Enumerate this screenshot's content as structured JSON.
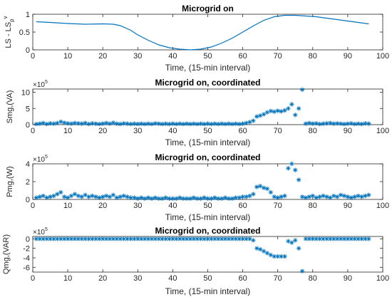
{
  "colors": {
    "series": "#0072BD",
    "axis": "#262626",
    "background": "#ffffff"
  },
  "chart_data": [
    {
      "type": "line",
      "title": "Microgrid on",
      "xlabel": "Time, (15-min interval)",
      "ylabel_main": "LS - LS",
      "ylabel_sub": "p",
      "ylabel_sup": "v",
      "exponent": "",
      "xlim": [
        0,
        100
      ],
      "ylim": [
        0,
        1
      ],
      "xticks": [
        0,
        10,
        20,
        30,
        40,
        50,
        60,
        70,
        80,
        90,
        100
      ],
      "yticks": [
        0,
        0.5,
        1
      ],
      "ytick_labels": [
        "0",
        "0.5",
        "1"
      ],
      "grid": false,
      "series": [
        {
          "x": [
            1,
            5,
            10,
            15,
            20,
            23,
            25,
            28,
            30,
            33,
            36,
            39,
            42,
            45,
            48,
            51,
            54,
            57,
            60,
            63,
            66,
            69,
            72,
            75,
            78,
            81,
            84,
            87,
            90,
            93,
            96
          ],
          "values": [
            0.79,
            0.77,
            0.74,
            0.72,
            0.73,
            0.72,
            0.68,
            0.55,
            0.42,
            0.27,
            0.14,
            0.06,
            0.02,
            0.0,
            0.02,
            0.08,
            0.19,
            0.33,
            0.5,
            0.67,
            0.83,
            0.93,
            0.97,
            0.97,
            0.95,
            0.93,
            0.89,
            0.85,
            0.81,
            0.77,
            0.73
          ]
        }
      ]
    },
    {
      "type": "scatter",
      "title": "Microgrid on, coordinated",
      "xlabel": "Time, (15-min interval)",
      "ylabel_main": "Smg,(VA)",
      "ylabel_sub": "",
      "ylabel_sup": "",
      "exponent": "5",
      "xlim": [
        0,
        100
      ],
      "ylim": [
        0,
        11
      ],
      "xticks": [
        0,
        10,
        20,
        30,
        40,
        50,
        60,
        70,
        80,
        90,
        100
      ],
      "yticks": [
        0,
        5,
        10
      ],
      "ytick_labels": [
        "0",
        "5",
        "10"
      ],
      "grid": false,
      "series": [
        {
          "x": [
            1,
            2,
            3,
            4,
            5,
            6,
            7,
            8,
            9,
            10,
            11,
            12,
            13,
            14,
            15,
            16,
            17,
            18,
            19,
            20,
            21,
            22,
            23,
            24,
            25,
            26,
            27,
            28,
            29,
            30,
            31,
            32,
            33,
            34,
            35,
            36,
            37,
            38,
            39,
            40,
            41,
            42,
            43,
            44,
            45,
            46,
            47,
            48,
            49,
            50,
            51,
            52,
            53,
            54,
            55,
            56,
            57,
            58,
            59,
            60,
            61,
            62,
            63,
            64,
            65,
            66,
            67,
            68,
            69,
            70,
            71,
            72,
            73,
            74,
            75,
            76,
            77,
            78,
            79,
            80,
            81,
            82,
            83,
            84,
            85,
            86,
            87,
            88,
            89,
            90,
            91,
            92,
            93,
            94,
            95,
            96
          ],
          "values": [
            0.2,
            0.3,
            0.5,
            0.2,
            0.4,
            0.3,
            0.5,
            0.9,
            0.6,
            0.4,
            0.3,
            0.5,
            0.4,
            0.3,
            0.5,
            0.2,
            0.4,
            0.3,
            0.2,
            0.3,
            0.5,
            0.3,
            0.6,
            0.3,
            0.2,
            0.4,
            0.3,
            0.2,
            0.3,
            0.2,
            0.3,
            0.2,
            0.3,
            0.2,
            0.4,
            0.3,
            0.2,
            0.3,
            0.2,
            0.3,
            0.2,
            0.3,
            0.2,
            0.3,
            0.2,
            0.3,
            0.2,
            0.3,
            0.2,
            0.3,
            0.2,
            0.3,
            0.2,
            0.3,
            0.2,
            0.3,
            0.2,
            0.3,
            0.2,
            0.3,
            0.5,
            0.8,
            1.2,
            2.5,
            2.8,
            3.2,
            3.8,
            4.2,
            4.0,
            4.3,
            4.1,
            4.4,
            5.0,
            6.3,
            3.0,
            5.0,
            10.8,
            0.3,
            0.5,
            0.3,
            0.4,
            0.2,
            0.3,
            0.4,
            0.5,
            0.3,
            0.4,
            0.3,
            0.2,
            0.3,
            0.4,
            0.2,
            0.3,
            0.2,
            0.4,
            0.3
          ]
        }
      ]
    },
    {
      "type": "scatter",
      "title": "Microgrid on, coordinated",
      "xlabel": "Time, (15-min interval)",
      "ylabel_main": "Pmg,(W)",
      "ylabel_sub": "",
      "ylabel_sup": "",
      "exponent": "5",
      "xlim": [
        0,
        100
      ],
      "ylim": [
        0,
        4
      ],
      "xticks": [
        0,
        10,
        20,
        30,
        40,
        50,
        60,
        70,
        80,
        90,
        100
      ],
      "yticks": [
        0,
        2,
        4
      ],
      "ytick_labels": [
        "0",
        "2",
        "4"
      ],
      "grid": false,
      "series": [
        {
          "x": [
            1,
            2,
            3,
            4,
            5,
            6,
            7,
            8,
            9,
            10,
            11,
            12,
            13,
            14,
            15,
            16,
            17,
            18,
            19,
            20,
            21,
            22,
            23,
            24,
            25,
            26,
            27,
            28,
            29,
            30,
            31,
            32,
            33,
            34,
            35,
            36,
            37,
            38,
            39,
            40,
            41,
            42,
            43,
            44,
            45,
            46,
            47,
            48,
            49,
            50,
            51,
            52,
            53,
            54,
            55,
            56,
            57,
            58,
            59,
            60,
            61,
            62,
            63,
            64,
            65,
            66,
            67,
            68,
            69,
            70,
            71,
            72,
            73,
            74,
            75,
            76,
            77,
            78,
            79,
            80,
            81,
            82,
            83,
            84,
            85,
            86,
            87,
            88,
            89,
            90,
            91,
            92,
            93,
            94,
            95,
            96
          ],
          "values": [
            0.2,
            0.3,
            0.4,
            0.2,
            0.3,
            0.4,
            0.6,
            0.8,
            0.3,
            0.2,
            0.4,
            0.6,
            0.4,
            0.3,
            0.5,
            0.3,
            0.4,
            0.3,
            0.2,
            0.3,
            0.4,
            0.3,
            0.5,
            0.2,
            0.3,
            0.4,
            0.3,
            0.2,
            0.2,
            0.1,
            0.2,
            0.1,
            0.2,
            0.1,
            0.2,
            0.1,
            0.1,
            0.2,
            0.1,
            0.1,
            0.1,
            0.2,
            0.1,
            0.1,
            0.1,
            0.2,
            0.1,
            0.1,
            0.2,
            0.1,
            0.1,
            0.2,
            0.1,
            0.1,
            0.2,
            0.1,
            0.1,
            0.2,
            0.2,
            0.3,
            0.3,
            0.4,
            0.6,
            1.4,
            1.5,
            1.3,
            1.2,
            0.8,
            0.3,
            0.2,
            0.3,
            0.4,
            3.5,
            4.0,
            3.3,
            2.2,
            0.3,
            0.2,
            0.3,
            0.4,
            0.2,
            0.3,
            0.4,
            0.3,
            0.2,
            0.4,
            0.3,
            0.5,
            0.4,
            0.3,
            0.2,
            0.3,
            0.4,
            0.3,
            0.4,
            0.5
          ]
        }
      ]
    },
    {
      "type": "scatter",
      "title": "Microgrid on, coordinated",
      "xlabel": "Time, (15-min interval)",
      "ylabel_main": "Qmg,(VAR)",
      "ylabel_sub": "",
      "ylabel_sup": "",
      "exponent": "5",
      "xlim": [
        0,
        100
      ],
      "ylim": [
        -7,
        0.5
      ],
      "xticks": [
        0,
        10,
        20,
        30,
        40,
        50,
        60,
        70,
        80,
        90,
        100
      ],
      "yticks": [
        -6,
        -4,
        -2,
        0
      ],
      "ytick_labels": [
        "-6",
        "-4",
        "-2",
        "0"
      ],
      "grid": false,
      "series": [
        {
          "x": [
            1,
            2,
            3,
            4,
            5,
            6,
            7,
            8,
            9,
            10,
            11,
            12,
            13,
            14,
            15,
            16,
            17,
            18,
            19,
            20,
            21,
            22,
            23,
            24,
            25,
            26,
            27,
            28,
            29,
            30,
            31,
            32,
            33,
            34,
            35,
            36,
            37,
            38,
            39,
            40,
            41,
            42,
            43,
            44,
            45,
            46,
            47,
            48,
            49,
            50,
            51,
            52,
            53,
            54,
            55,
            56,
            57,
            58,
            59,
            60,
            61,
            62,
            63,
            64,
            65,
            66,
            67,
            68,
            69,
            70,
            71,
            72,
            73,
            74,
            75,
            76,
            77,
            78,
            79,
            80,
            81,
            82,
            83,
            84,
            85,
            86,
            87,
            88,
            89,
            90,
            91,
            92,
            93,
            94,
            95,
            96
          ],
          "values": [
            0,
            0,
            0,
            0,
            0,
            0,
            0,
            0,
            0,
            0,
            0,
            0,
            0,
            0,
            0,
            0,
            0,
            0,
            0,
            0,
            0,
            0,
            0,
            0,
            0,
            0,
            0,
            0,
            0,
            0,
            0,
            0,
            0,
            0,
            0,
            0,
            0,
            0,
            0,
            0,
            0,
            0,
            0,
            0,
            0,
            0,
            0,
            0,
            0,
            0,
            0,
            0,
            0,
            0,
            0,
            0,
            0,
            0,
            0,
            0,
            0,
            0,
            -0.3,
            -2.0,
            -2.2,
            -2.6,
            -3.0,
            -3.4,
            -3.7,
            -3.7,
            -3.7,
            -3.7,
            -0.5,
            -0.8,
            -0.3,
            -2.0,
            -6.8,
            0,
            0,
            0,
            0,
            0,
            0,
            0,
            0,
            0,
            0,
            0,
            0,
            0,
            0,
            0,
            0,
            0,
            0,
            0
          ]
        }
      ]
    }
  ]
}
